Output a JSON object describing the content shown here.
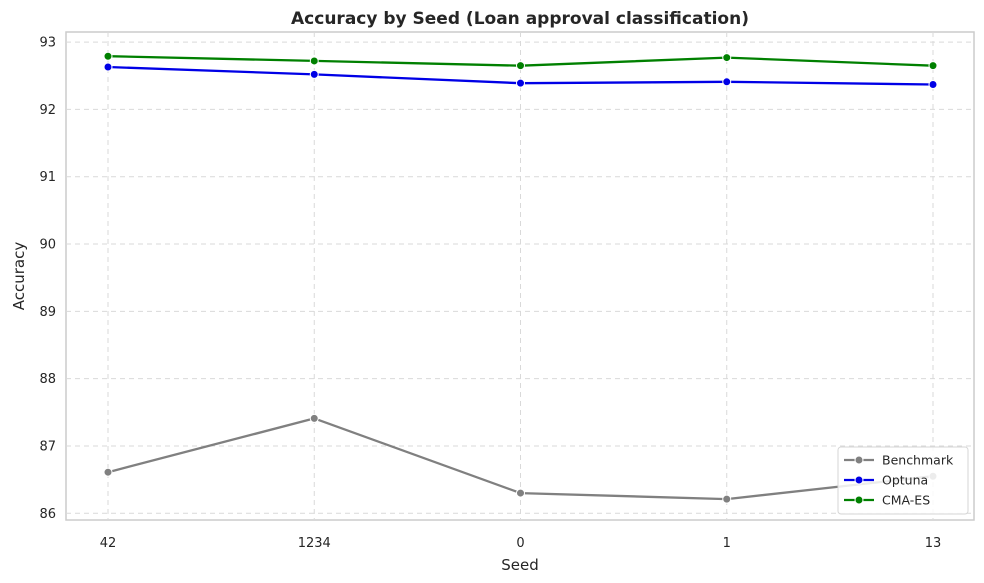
{
  "chart_data": {
    "type": "line",
    "title": "Accuracy by Seed (Loan approval classification)",
    "xlabel": "Seed",
    "ylabel": "Accuracy",
    "categories": [
      "42",
      "1234",
      "0",
      "1",
      "13"
    ],
    "ylim": [
      85.9,
      93.15
    ],
    "yticks": [
      86,
      87,
      88,
      89,
      90,
      91,
      92,
      93
    ],
    "grid": true,
    "legend_position": "bottom-right",
    "series": [
      {
        "name": "Benchmark",
        "color": "#808080",
        "values": [
          86.61,
          87.41,
          86.3,
          86.21,
          86.55
        ]
      },
      {
        "name": "Optuna",
        "color": "#0000e6",
        "values": [
          92.63,
          92.52,
          92.39,
          92.41,
          92.37
        ]
      },
      {
        "name": "CMA-ES",
        "color": "#008000",
        "values": [
          92.79,
          92.72,
          92.65,
          92.77,
          92.65
        ]
      }
    ]
  }
}
